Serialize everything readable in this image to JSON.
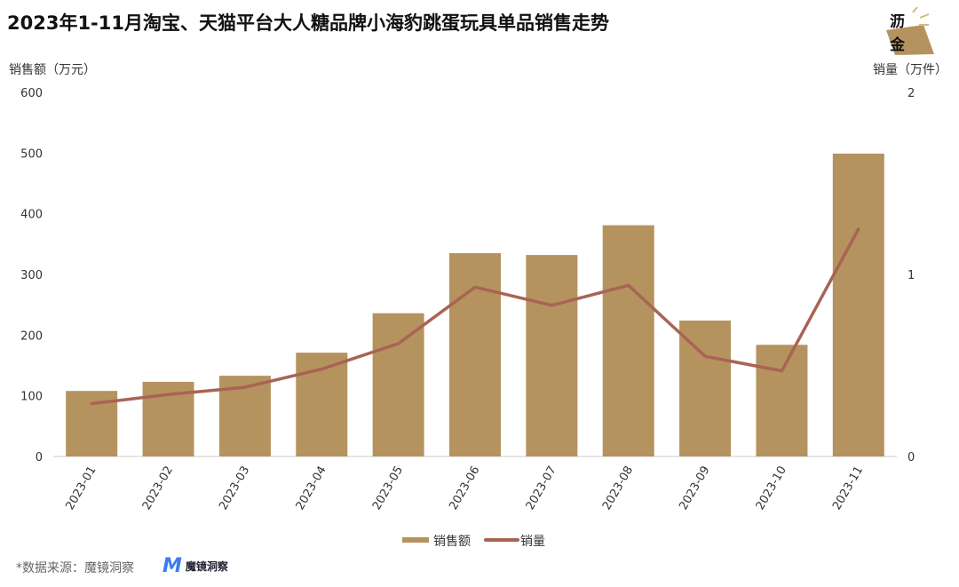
{
  "title": "2023年1-11月淘宝、天猫平台大人糖品牌小海豹跳蛋玩具单品销售走势",
  "source": "*数据来源：魔镜洞察",
  "source_logo": "魔镜洞察",
  "brand_logo": "沥金",
  "colors": {
    "bar": "#b5935f",
    "line": "#a86454"
  },
  "chart_data": {
    "type": "bar+line",
    "title": "2023年1-11月淘宝、天猫平台大人糖品牌小海豹跳蛋玩具单品销售走势",
    "categories": [
      "2023-01",
      "2023-02",
      "2023-03",
      "2023-04",
      "2023-05",
      "2023-06",
      "2023-07",
      "2023-08",
      "2023-09",
      "2023-10",
      "2023-11"
    ],
    "series": [
      {
        "name": "销售额",
        "type": "bar",
        "axis": "left",
        "values": [
          108,
          123,
          133,
          171,
          236,
          335,
          332,
          381,
          224,
          184,
          499
        ]
      },
      {
        "name": "销量",
        "type": "line",
        "axis": "right",
        "values": [
          0.29,
          0.34,
          0.38,
          0.48,
          0.62,
          0.93,
          0.83,
          0.94,
          0.55,
          0.47,
          1.25
        ]
      }
    ],
    "ylabel": "销售额（万元）",
    "ylim": [
      0,
      600
    ],
    "yticks": [
      "0",
      "100",
      "200",
      "300",
      "400",
      "500",
      "600"
    ],
    "y2label": "销量（万件）",
    "y2lim": [
      0,
      2
    ],
    "y2ticks": [
      "0",
      "1",
      "2"
    ],
    "legend": "bottom"
  }
}
